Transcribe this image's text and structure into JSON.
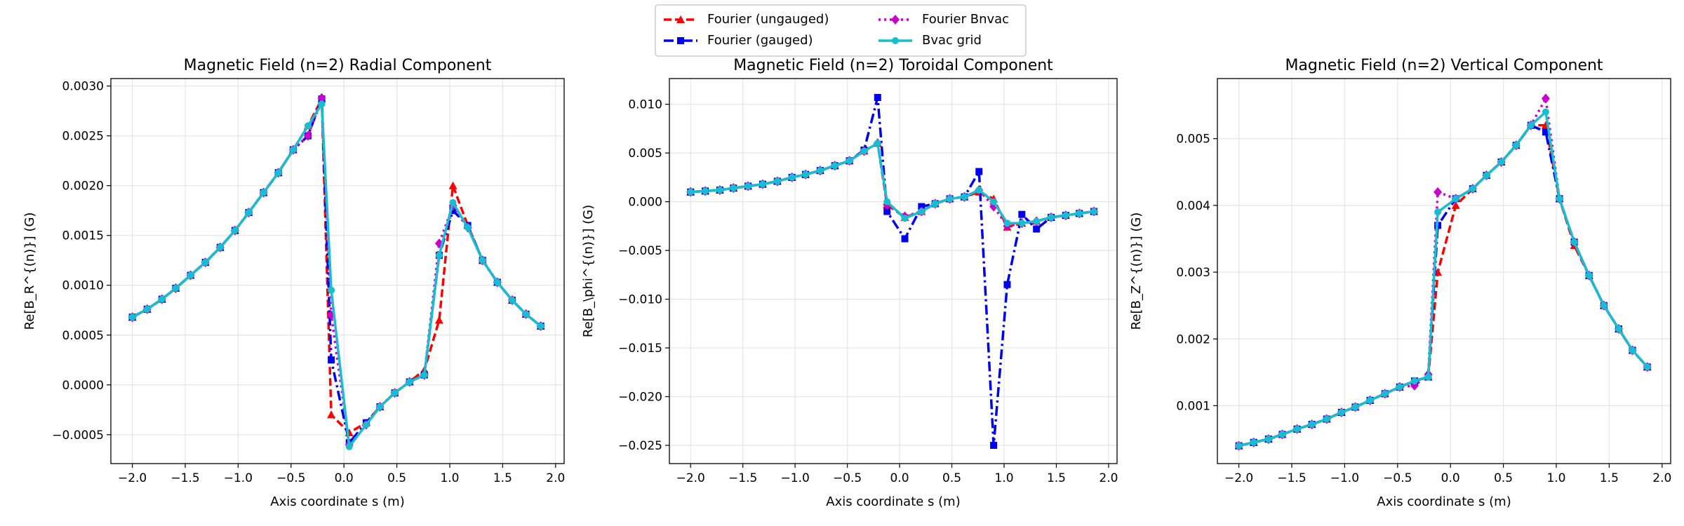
{
  "chart_data": [
    {
      "type": "line",
      "title": "Magnetic Field (n=2) Radial Component",
      "xlabel": "Axis coordinate s (m)",
      "ylabel": "Re[B_R^{(n)}] (G)",
      "grid": true,
      "x": [
        -2.0,
        -1.86,
        -1.72,
        -1.59,
        -1.45,
        -1.31,
        -1.17,
        -1.03,
        -0.9,
        -0.76,
        -0.62,
        -0.48,
        -0.34,
        -0.21,
        -0.12,
        0.05,
        0.21,
        0.34,
        0.48,
        0.62,
        0.76,
        0.9,
        1.03,
        1.17,
        1.31,
        1.45,
        1.59,
        1.72,
        1.86
      ],
      "xlim": [
        -2.203,
        2.081
      ],
      "ylim": [
        -0.00079,
        0.003075
      ],
      "xticks": [
        {
          "value": -2.0,
          "label": "−2.0"
        },
        {
          "value": -1.5,
          "label": "−1.5"
        },
        {
          "value": -1.0,
          "label": "−1.0"
        },
        {
          "value": -0.5,
          "label": "−0.5"
        },
        {
          "value": 0.0,
          "label": "0.0"
        },
        0.5,
        {
          "value": 1.0,
          "label": "1.0"
        },
        1.5,
        {
          "value": 2.0,
          "label": "2.0"
        }
      ],
      "yticks": [
        {
          "value": -0.0005,
          "label": "−0.0005"
        },
        {
          "value": 0.0,
          "label": "0.0000"
        },
        0.0005,
        {
          "value": 0.001,
          "label": "0.0010"
        },
        0.0015,
        {
          "value": 0.002,
          "label": "0.0020"
        },
        0.0025,
        {
          "value": 0.003,
          "label": "0.0030"
        }
      ],
      "series": [
        {
          "name": "Fourier (ungauged)",
          "color": "#ff0000",
          "marker": "triangle",
          "linestyle": "dashed",
          "values": [
            0.00068,
            0.00076,
            0.00086,
            0.00097,
            0.0011,
            0.00123,
            0.00138,
            0.00155,
            0.00173,
            0.00193,
            0.00213,
            0.00236,
            0.0026,
            0.00287,
            -0.0003,
            -0.00048,
            -0.00038,
            -0.00022,
            -8e-05,
            3e-05,
            0.00015,
            0.00065,
            0.002,
            0.0016,
            0.00125,
            0.00103,
            0.00085,
            0.00071,
            0.00059
          ]
        },
        {
          "name": "Fourier (gauged)",
          "color": "#0000ee",
          "marker": "square",
          "linestyle": "dashdot",
          "values": [
            0.00068,
            0.00076,
            0.00086,
            0.00097,
            0.0011,
            0.00123,
            0.00138,
            0.00155,
            0.00173,
            0.00193,
            0.00213,
            0.00236,
            0.0025,
            0.00287,
            0.00025,
            -0.00058,
            -0.00038,
            -0.00022,
            -8e-05,
            3e-05,
            0.0001,
            0.0013,
            0.00175,
            0.0016,
            0.00125,
            0.00103,
            0.00085,
            0.00071,
            0.00059
          ]
        },
        {
          "name": "Fourier Bnvac",
          "color": "#cc00cc",
          "marker": "diamond",
          "linestyle": "dotted",
          "values": [
            0.00068,
            0.00076,
            0.00086,
            0.00097,
            0.0011,
            0.00123,
            0.00138,
            0.00155,
            0.00173,
            0.00193,
            0.00213,
            0.00236,
            0.0025,
            0.00288,
            0.0007,
            -0.0006,
            -0.0004,
            -0.00022,
            -8e-05,
            3e-05,
            0.0001,
            0.00142,
            0.0018,
            0.00158,
            0.00125,
            0.00103,
            0.00085,
            0.00071,
            0.00059
          ]
        },
        {
          "name": "Bvac grid",
          "color": "#17becf",
          "marker": "circle",
          "linestyle": "solid",
          "values": [
            0.00068,
            0.00076,
            0.00086,
            0.00097,
            0.0011,
            0.00123,
            0.00138,
            0.00155,
            0.00173,
            0.00193,
            0.00213,
            0.00236,
            0.0026,
            0.00282,
            0.00095,
            -0.00062,
            -0.0004,
            -0.00022,
            -8e-05,
            3e-05,
            0.0001,
            0.0013,
            0.00183,
            0.00158,
            0.00125,
            0.00103,
            0.00085,
            0.00071,
            0.00059
          ]
        }
      ]
    },
    {
      "type": "line",
      "title": "Magnetic Field (n=2) Toroidal Component",
      "xlabel": "Axis coordinate s (m)",
      "ylabel": "Re[B_\\phi^{(n)}] (G)",
      "grid": true,
      "x": [
        -2.0,
        -1.86,
        -1.72,
        -1.59,
        -1.45,
        -1.31,
        -1.17,
        -1.03,
        -0.9,
        -0.76,
        -0.62,
        -0.48,
        -0.34,
        -0.21,
        -0.12,
        0.05,
        0.21,
        0.34,
        0.48,
        0.62,
        0.76,
        0.9,
        1.03,
        1.17,
        1.31,
        1.45,
        1.59,
        1.72,
        1.86
      ],
      "xlim": [
        -2.203,
        2.081
      ],
      "ylim": [
        -0.02687,
        0.01264
      ],
      "xticks": [
        {
          "value": -2.0,
          "label": "−2.0"
        },
        {
          "value": -1.5,
          "label": "−1.5"
        },
        {
          "value": -1.0,
          "label": "−1.0"
        },
        {
          "value": -0.5,
          "label": "−0.5"
        },
        {
          "value": 0.0,
          "label": "0.0"
        },
        0.5,
        {
          "value": 1.0,
          "label": "1.0"
        },
        1.5,
        {
          "value": 2.0,
          "label": "2.0"
        }
      ],
      "yticks": [
        {
          "value": -0.025,
          "label": "−0.025"
        },
        {
          "value": -0.02,
          "label": "−0.020"
        },
        {
          "value": -0.015,
          "label": "−0.015"
        },
        {
          "value": -0.01,
          "label": "−0.010"
        },
        {
          "value": -0.005,
          "label": "−0.005"
        },
        {
          "value": 0.0,
          "label": "0.000"
        },
        0.005,
        {
          "value": 0.01,
          "label": "0.010"
        }
      ],
      "series": [
        {
          "name": "Fourier (ungauged)",
          "color": "#ff0000",
          "marker": "triangle",
          "linestyle": "dashed",
          "values": [
            0.001,
            0.0011,
            0.0012,
            0.0014,
            0.0016,
            0.0018,
            0.0021,
            0.0025,
            0.0028,
            0.0032,
            0.0037,
            0.0042,
            0.0052,
            0.006,
            -0.0003,
            -0.0016,
            -0.001,
            -0.0002,
            0.0003,
            0.0005,
            0.001,
            0.0003,
            -0.0026,
            -0.0022,
            -0.002,
            -0.0016,
            -0.0014,
            -0.0012,
            -0.001
          ]
        },
        {
          "name": "Fourier (gauged)",
          "color": "#0000ee",
          "marker": "square",
          "linestyle": "dashdot",
          "values": [
            0.001,
            0.0011,
            0.0012,
            0.0014,
            0.0016,
            0.0018,
            0.0021,
            0.0025,
            0.0028,
            0.0032,
            0.0037,
            0.0042,
            0.0053,
            0.0107,
            -0.001,
            -0.0038,
            -0.0005,
            -0.0002,
            0.0003,
            0.0005,
            0.0031,
            -0.025,
            -0.0085,
            -0.0013,
            -0.0028,
            -0.0016,
            -0.0014,
            -0.0012,
            -0.001
          ]
        },
        {
          "name": "Fourier Bnvac",
          "color": "#cc00cc",
          "marker": "diamond",
          "linestyle": "dotted",
          "values": [
            0.001,
            0.0011,
            0.0012,
            0.0014,
            0.0016,
            0.0018,
            0.0021,
            0.0025,
            0.0028,
            0.0032,
            0.0037,
            0.0042,
            0.0052,
            0.006,
            -0.0003,
            -0.0015,
            -0.001,
            -0.0002,
            0.0003,
            0.0005,
            0.0012,
            -0.0005,
            -0.0025,
            -0.0022,
            -0.002,
            -0.0016,
            -0.0014,
            -0.0012,
            -0.001
          ]
        },
        {
          "name": "Bvac grid",
          "color": "#17becf",
          "marker": "circle",
          "linestyle": "solid",
          "values": [
            0.001,
            0.0011,
            0.0012,
            0.0014,
            0.0016,
            0.0018,
            0.0021,
            0.0025,
            0.0028,
            0.0032,
            0.0037,
            0.0042,
            0.0052,
            0.006,
            0.0,
            -0.0017,
            -0.001,
            -0.0002,
            0.0003,
            0.0005,
            0.0012,
            0.0,
            -0.0022,
            -0.0022,
            -0.002,
            -0.0016,
            -0.0014,
            -0.0012,
            -0.001
          ]
        }
      ]
    },
    {
      "type": "line",
      "title": "Magnetic Field (n=2) Vertical Component",
      "xlabel": "Axis coordinate s (m)",
      "ylabel": "Re[B_Z^{(n)}] (G)",
      "grid": true,
      "x": [
        -2.0,
        -1.86,
        -1.72,
        -1.59,
        -1.45,
        -1.31,
        -1.17,
        -1.03,
        -0.9,
        -0.76,
        -0.62,
        -0.48,
        -0.34,
        -0.21,
        -0.12,
        0.05,
        0.21,
        0.34,
        0.48,
        0.62,
        0.76,
        0.9,
        1.03,
        1.17,
        1.31,
        1.45,
        1.59,
        1.72,
        1.86
      ],
      "xlim": [
        -2.203,
        2.081
      ],
      "ylim": [
        0.000133,
        0.0059
      ],
      "xticks": [
        {
          "value": -2.0,
          "label": "−2.0"
        },
        {
          "value": -1.5,
          "label": "−1.5"
        },
        {
          "value": -1.0,
          "label": "−1.0"
        },
        {
          "value": -0.5,
          "label": "−0.5"
        },
        {
          "value": 0.0,
          "label": "0.0"
        },
        0.5,
        {
          "value": 1.0,
          "label": "1.0"
        },
        1.5,
        {
          "value": 2.0,
          "label": "2.0"
        }
      ],
      "yticks": [
        0.001,
        0.002,
        0.003,
        0.004,
        0.005
      ],
      "series": [
        {
          "name": "Fourier (ungauged)",
          "color": "#ff0000",
          "marker": "triangle",
          "linestyle": "dashed",
          "values": [
            0.0004,
            0.00045,
            0.0005,
            0.00057,
            0.00065,
            0.00072,
            0.0008,
            0.0009,
            0.00098,
            0.00108,
            0.00118,
            0.00128,
            0.00137,
            0.00143,
            0.003,
            0.004,
            0.00425,
            0.00445,
            0.00465,
            0.0049,
            0.0052,
            0.0052,
            0.0041,
            0.0034,
            0.00295,
            0.0025,
            0.00215,
            0.00183,
            0.00158
          ]
        },
        {
          "name": "Fourier (gauged)",
          "color": "#0000ee",
          "marker": "square",
          "linestyle": "dashdot",
          "values": [
            0.0004,
            0.00045,
            0.0005,
            0.00057,
            0.00065,
            0.00072,
            0.0008,
            0.0009,
            0.00098,
            0.00108,
            0.00118,
            0.00128,
            0.00137,
            0.00143,
            0.0037,
            0.0041,
            0.00425,
            0.00445,
            0.00465,
            0.0049,
            0.0052,
            0.0051,
            0.0041,
            0.00345,
            0.00295,
            0.0025,
            0.00215,
            0.00183,
            0.00158
          ]
        },
        {
          "name": "Fourier Bnvac",
          "color": "#cc00cc",
          "marker": "diamond",
          "linestyle": "dotted",
          "values": [
            0.0004,
            0.00045,
            0.0005,
            0.00057,
            0.00065,
            0.00072,
            0.0008,
            0.0009,
            0.00098,
            0.00108,
            0.00118,
            0.00128,
            0.0013,
            0.00147,
            0.0042,
            0.0041,
            0.00425,
            0.00445,
            0.00465,
            0.0049,
            0.0052,
            0.0056,
            0.0041,
            0.00345,
            0.00295,
            0.0025,
            0.00215,
            0.00183,
            0.00158
          ]
        },
        {
          "name": "Bvac grid",
          "color": "#17becf",
          "marker": "circle",
          "linestyle": "solid",
          "values": [
            0.0004,
            0.00045,
            0.0005,
            0.00057,
            0.00065,
            0.00072,
            0.0008,
            0.0009,
            0.00098,
            0.00108,
            0.00118,
            0.00128,
            0.00137,
            0.00143,
            0.0039,
            0.0041,
            0.00425,
            0.00445,
            0.00465,
            0.0049,
            0.0052,
            0.0054,
            0.0041,
            0.00345,
            0.00295,
            0.0025,
            0.00215,
            0.00183,
            0.00158
          ]
        }
      ]
    }
  ]
}
